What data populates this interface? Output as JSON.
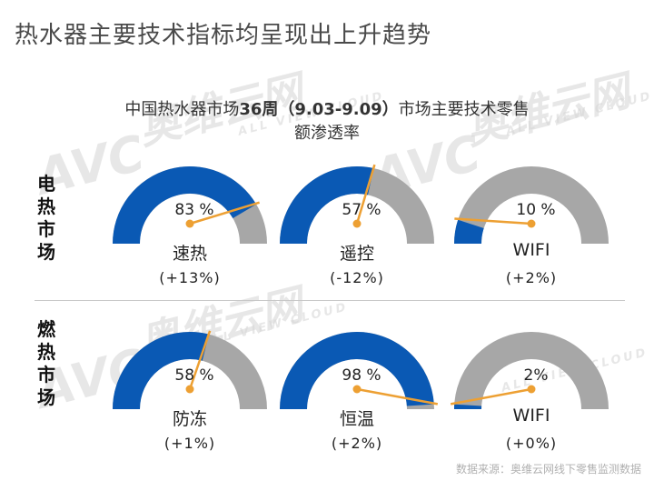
{
  "page_title": "热水器主要技术指标均呈现出上升趋势",
  "chart_data": {
    "type": "gauge",
    "title_line1_prefix": "中国热水器市场",
    "title_line1_bold": "36周（9.03-9.09）",
    "title_line1_suffix": "市场主要技术零售",
    "title_line2": "额渗透率",
    "groups": [
      {
        "label": "电热市场",
        "gauges": [
          {
            "name": "速热",
            "value": 83,
            "value_text": "83 %",
            "change": "(+13%)"
          },
          {
            "name": "遥控",
            "value": 57,
            "value_text": "57 %",
            "change": "(-12%)"
          },
          {
            "name": "WIFI",
            "value": 10,
            "value_text": "10 %",
            "change": "(+2%)"
          }
        ]
      },
      {
        "label": "燃热市场",
        "gauges": [
          {
            "name": "防冻",
            "value": 58,
            "value_text": "58 %",
            "change": "(+1%)"
          },
          {
            "name": "恒温",
            "value": 98,
            "value_text": "98 %",
            "change": "(+2%)"
          },
          {
            "name": "WIFI",
            "value": 2,
            "value_text": "2%",
            "change": "(+0%)"
          }
        ]
      }
    ],
    "range": [
      0,
      100
    ],
    "colors": {
      "fill": "#0a59b4",
      "track": "#a7a7a7",
      "needle": "#eda033"
    }
  },
  "watermark": {
    "brand": "AVC",
    "cn": "奥维云网",
    "en": "ALL VIEW CLOUD"
  },
  "source": "数据来源：奥维云网线下零售监测数据"
}
